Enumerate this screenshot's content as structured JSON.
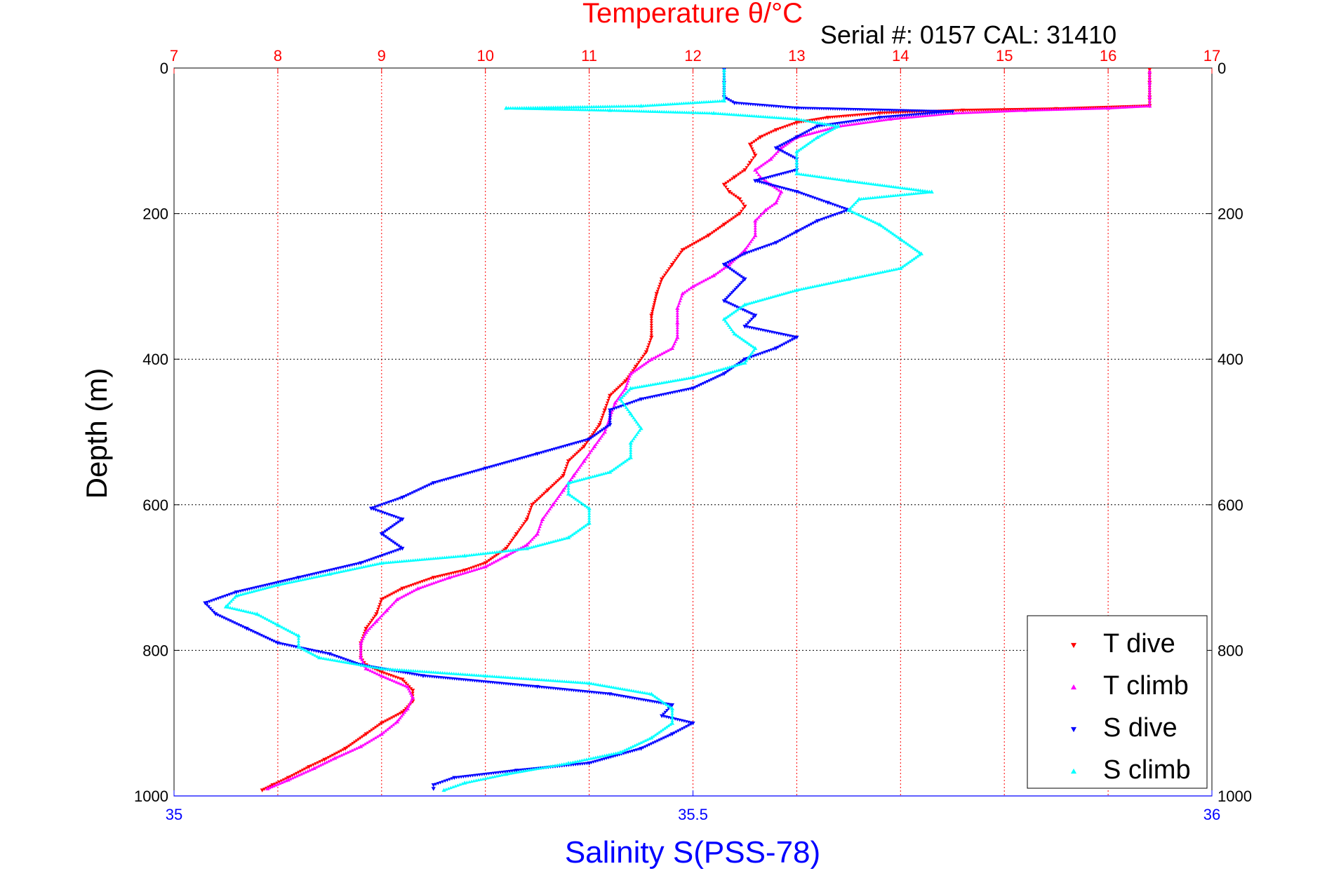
{
  "chart_data": {
    "type": "scatter",
    "title": "Temperature θ/°C",
    "subtitle": "Serial #: 0157  CAL: 31410",
    "ylabel": "Depth (m)",
    "xlabel_bottom": "Salinity S(PSS-78)",
    "xlabel_top": "Temperature θ/°C",
    "ylim": [
      0,
      1000
    ],
    "y_reversed": true,
    "yticks": [
      "0",
      "200",
      "400",
      "600",
      "800",
      "1000"
    ],
    "temperature_axis": {
      "range": [
        7,
        17
      ],
      "ticks": [
        "7",
        "8",
        "9",
        "10",
        "11",
        "12",
        "13",
        "14",
        "15",
        "16",
        "17"
      ]
    },
    "salinity_axis": {
      "range": [
        35,
        36
      ],
      "ticks": [
        "35",
        "35.5",
        "36"
      ]
    },
    "grid": true,
    "legend_position": "bottom-right",
    "colors": {
      "t_dive": "#ff0000",
      "t_climb": "#ff00ff",
      "s_dive": "#0000ff",
      "s_climb": "#00ffff",
      "temp_axis": "#ff0000",
      "sal_axis": "#0000ff"
    },
    "series": [
      {
        "name": "T dive",
        "axis": "temperature",
        "marker": "triangle-down",
        "points": [
          [
            16.4,
            2
          ],
          [
            16.4,
            20
          ],
          [
            16.4,
            40
          ],
          [
            16.4,
            52
          ],
          [
            15.5,
            56
          ],
          [
            14.6,
            58
          ],
          [
            13.8,
            62
          ],
          [
            13.3,
            68
          ],
          [
            13.0,
            75
          ],
          [
            12.8,
            85
          ],
          [
            12.65,
            95
          ],
          [
            12.55,
            105
          ],
          [
            12.6,
            120
          ],
          [
            12.55,
            130
          ],
          [
            12.5,
            140
          ],
          [
            12.4,
            150
          ],
          [
            12.3,
            160
          ],
          [
            12.35,
            170
          ],
          [
            12.45,
            180
          ],
          [
            12.5,
            190
          ],
          [
            12.45,
            200
          ],
          [
            12.3,
            215
          ],
          [
            12.15,
            230
          ],
          [
            11.9,
            250
          ],
          [
            11.8,
            270
          ],
          [
            11.7,
            290
          ],
          [
            11.65,
            310
          ],
          [
            11.6,
            340
          ],
          [
            11.6,
            370
          ],
          [
            11.55,
            390
          ],
          [
            11.45,
            410
          ],
          [
            11.35,
            430
          ],
          [
            11.2,
            450
          ],
          [
            11.15,
            470
          ],
          [
            11.1,
            490
          ],
          [
            10.95,
            520
          ],
          [
            10.8,
            540
          ],
          [
            10.75,
            560
          ],
          [
            10.6,
            580
          ],
          [
            10.45,
            600
          ],
          [
            10.4,
            620
          ],
          [
            10.3,
            640
          ],
          [
            10.2,
            660
          ],
          [
            10.0,
            680
          ],
          [
            9.8,
            690
          ],
          [
            9.5,
            700
          ],
          [
            9.2,
            715
          ],
          [
            9.0,
            730
          ],
          [
            8.95,
            750
          ],
          [
            8.85,
            770
          ],
          [
            8.8,
            790
          ],
          [
            8.8,
            810
          ],
          [
            8.85,
            820
          ],
          [
            9.0,
            830
          ],
          [
            9.2,
            840
          ],
          [
            9.3,
            855
          ],
          [
            9.3,
            870
          ],
          [
            9.2,
            885
          ],
          [
            9.0,
            900
          ],
          [
            8.85,
            915
          ],
          [
            8.65,
            935
          ],
          [
            8.45,
            950
          ],
          [
            8.3,
            960
          ],
          [
            8.1,
            975
          ],
          [
            7.95,
            985
          ],
          [
            7.85,
            992
          ]
        ]
      },
      {
        "name": "T climb",
        "axis": "temperature",
        "marker": "triangle-up",
        "points": [
          [
            7.9,
            990
          ],
          [
            8.1,
            978
          ],
          [
            8.35,
            962
          ],
          [
            8.55,
            948
          ],
          [
            8.8,
            932
          ],
          [
            9.0,
            915
          ],
          [
            9.15,
            898
          ],
          [
            9.25,
            880
          ],
          [
            9.3,
            865
          ],
          [
            9.25,
            850
          ],
          [
            9.0,
            835
          ],
          [
            8.85,
            825
          ],
          [
            8.8,
            810
          ],
          [
            8.8,
            790
          ],
          [
            8.85,
            775
          ],
          [
            8.95,
            760
          ],
          [
            9.05,
            745
          ],
          [
            9.15,
            730
          ],
          [
            9.35,
            715
          ],
          [
            9.65,
            700
          ],
          [
            10.0,
            685
          ],
          [
            10.2,
            670
          ],
          [
            10.4,
            655
          ],
          [
            10.5,
            640
          ],
          [
            10.55,
            620
          ],
          [
            10.65,
            600
          ],
          [
            10.75,
            580
          ],
          [
            10.85,
            560
          ],
          [
            10.95,
            540
          ],
          [
            11.05,
            520
          ],
          [
            11.15,
            500
          ],
          [
            11.2,
            480
          ],
          [
            11.25,
            460
          ],
          [
            11.35,
            440
          ],
          [
            11.4,
            420
          ],
          [
            11.6,
            400
          ],
          [
            11.8,
            385
          ],
          [
            11.85,
            370
          ],
          [
            11.85,
            350
          ],
          [
            11.85,
            330
          ],
          [
            11.9,
            310
          ],
          [
            12.0,
            300
          ],
          [
            12.2,
            285
          ],
          [
            12.35,
            270
          ],
          [
            12.5,
            250
          ],
          [
            12.6,
            230
          ],
          [
            12.6,
            210
          ],
          [
            12.7,
            195
          ],
          [
            12.8,
            185
          ],
          [
            12.85,
            170
          ],
          [
            12.75,
            160
          ],
          [
            12.65,
            150
          ],
          [
            12.6,
            140
          ],
          [
            12.75,
            125
          ],
          [
            12.85,
            110
          ],
          [
            13.0,
            95
          ],
          [
            13.4,
            80
          ],
          [
            13.9,
            70
          ],
          [
            14.5,
            62
          ],
          [
            15.2,
            58
          ],
          [
            16.0,
            55
          ],
          [
            16.4,
            52
          ],
          [
            16.4,
            40
          ],
          [
            16.4,
            20
          ],
          [
            16.4,
            5
          ]
        ]
      },
      {
        "name": "S dive",
        "axis": "salinity",
        "marker": "triangle-down",
        "points": [
          [
            35.53,
            2
          ],
          [
            35.53,
            20
          ],
          [
            35.53,
            40
          ],
          [
            35.54,
            48
          ],
          [
            35.6,
            55
          ],
          [
            35.75,
            60
          ],
          [
            35.68,
            68
          ],
          [
            35.62,
            80
          ],
          [
            35.6,
            95
          ],
          [
            35.58,
            110
          ],
          [
            35.6,
            125
          ],
          [
            35.6,
            140
          ],
          [
            35.56,
            155
          ],
          [
            35.6,
            170
          ],
          [
            35.63,
            185
          ],
          [
            35.65,
            195
          ],
          [
            35.62,
            210
          ],
          [
            35.6,
            225
          ],
          [
            35.58,
            240
          ],
          [
            35.55,
            255
          ],
          [
            35.53,
            270
          ],
          [
            35.55,
            290
          ],
          [
            35.53,
            320
          ],
          [
            35.56,
            340
          ],
          [
            35.55,
            355
          ],
          [
            35.6,
            370
          ],
          [
            35.58,
            385
          ],
          [
            35.55,
            400
          ],
          [
            35.53,
            420
          ],
          [
            35.5,
            440
          ],
          [
            35.45,
            455
          ],
          [
            35.42,
            470
          ],
          [
            35.42,
            490
          ],
          [
            35.4,
            510
          ],
          [
            35.35,
            530
          ],
          [
            35.3,
            550
          ],
          [
            35.25,
            570
          ],
          [
            35.22,
            590
          ],
          [
            35.19,
            605
          ],
          [
            35.22,
            620
          ],
          [
            35.2,
            640
          ],
          [
            35.22,
            660
          ],
          [
            35.18,
            680
          ],
          [
            35.12,
            700
          ],
          [
            35.06,
            720
          ],
          [
            35.03,
            735
          ],
          [
            35.04,
            750
          ],
          [
            35.07,
            770
          ],
          [
            35.1,
            790
          ],
          [
            35.15,
            805
          ],
          [
            35.18,
            820
          ],
          [
            35.24,
            835
          ],
          [
            35.35,
            850
          ],
          [
            35.42,
            860
          ],
          [
            35.48,
            875
          ],
          [
            35.47,
            890
          ],
          [
            35.5,
            900
          ],
          [
            35.48,
            915
          ],
          [
            35.45,
            935
          ],
          [
            35.4,
            955
          ],
          [
            35.33,
            965
          ],
          [
            35.27,
            975
          ],
          [
            35.25,
            985
          ],
          [
            35.25,
            990
          ]
        ]
      },
      {
        "name": "S climb",
        "axis": "salinity",
        "marker": "triangle-up",
        "points": [
          [
            35.26,
            992
          ],
          [
            35.28,
            982
          ],
          [
            35.32,
            970
          ],
          [
            35.38,
            955
          ],
          [
            35.43,
            940
          ],
          [
            35.46,
            920
          ],
          [
            35.48,
            900
          ],
          [
            35.48,
            880
          ],
          [
            35.46,
            860
          ],
          [
            35.4,
            845
          ],
          [
            35.3,
            835
          ],
          [
            35.2,
            825
          ],
          [
            35.14,
            810
          ],
          [
            35.12,
            795
          ],
          [
            35.12,
            780
          ],
          [
            35.1,
            765
          ],
          [
            35.08,
            750
          ],
          [
            35.05,
            740
          ],
          [
            35.06,
            725
          ],
          [
            35.1,
            710
          ],
          [
            35.15,
            695
          ],
          [
            35.2,
            680
          ],
          [
            35.28,
            670
          ],
          [
            35.34,
            660
          ],
          [
            35.38,
            645
          ],
          [
            35.4,
            625
          ],
          [
            35.4,
            605
          ],
          [
            35.38,
            585
          ],
          [
            35.38,
            570
          ],
          [
            35.42,
            555
          ],
          [
            35.44,
            535
          ],
          [
            35.44,
            515
          ],
          [
            35.45,
            495
          ],
          [
            35.44,
            475
          ],
          [
            35.43,
            455
          ],
          [
            35.44,
            440
          ],
          [
            35.5,
            425
          ],
          [
            35.55,
            405
          ],
          [
            35.56,
            385
          ],
          [
            35.54,
            365
          ],
          [
            35.53,
            345
          ],
          [
            35.55,
            325
          ],
          [
            35.6,
            305
          ],
          [
            35.65,
            290
          ],
          [
            35.7,
            275
          ],
          [
            35.72,
            255
          ],
          [
            35.7,
            235
          ],
          [
            35.68,
            215
          ],
          [
            35.65,
            195
          ],
          [
            35.66,
            180
          ],
          [
            35.73,
            170
          ],
          [
            35.65,
            155
          ],
          [
            35.6,
            145
          ],
          [
            35.6,
            130
          ],
          [
            35.6,
            115
          ],
          [
            35.62,
            95
          ],
          [
            35.64,
            80
          ],
          [
            35.6,
            70
          ],
          [
            35.52,
            62
          ],
          [
            35.42,
            58
          ],
          [
            35.32,
            55
          ],
          [
            35.45,
            52
          ],
          [
            35.53,
            45
          ],
          [
            35.53,
            20
          ],
          [
            35.53,
            3
          ]
        ]
      }
    ]
  }
}
